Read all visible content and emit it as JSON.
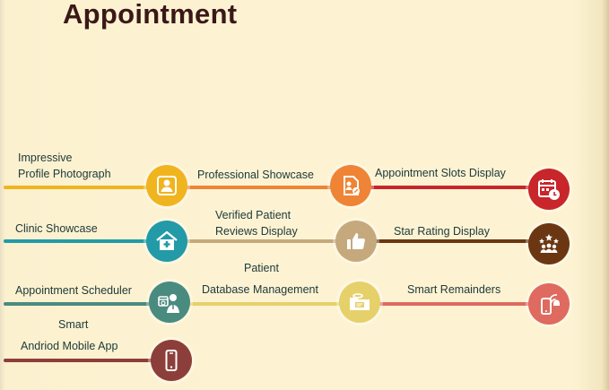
{
  "page": {
    "title": "Appointment"
  },
  "features": [
    {
      "id": "profile",
      "label_lines": [
        "Impressive",
        "Profile Photograph"
      ],
      "icon": "profile-photo-icon",
      "color": "#f0b41e"
    },
    {
      "id": "showcase",
      "label_lines": [
        "Professional Showcase"
      ],
      "icon": "document-badge-icon",
      "color": "#ef8436"
    },
    {
      "id": "slots",
      "label_lines": [
        "Appointment Slots Display"
      ],
      "icon": "calendar-clock-icon",
      "color": "#c8262b"
    },
    {
      "id": "clinic",
      "label_lines": [
        "Clinic Showcase"
      ],
      "icon": "clinic-cross-icon",
      "color": "#239aa7"
    },
    {
      "id": "reviews",
      "label_lines": [
        "Verified Patient",
        "Reviews Display"
      ],
      "icon": "thumbs-up-icon",
      "color": "#c5a97c"
    },
    {
      "id": "rating",
      "label_lines": [
        "Star Rating Display"
      ],
      "icon": "star-rating-users-icon",
      "color": "#6b3712"
    },
    {
      "id": "scheduler",
      "label_lines": [
        "Appointment Scheduler"
      ],
      "icon": "doctor-scheduler-icon",
      "color": "#4a8b80"
    },
    {
      "id": "database",
      "label_lines": [
        "Patient",
        "Database Management"
      ],
      "icon": "database-folder-icon",
      "color": "#e6d06a"
    },
    {
      "id": "reminders",
      "label_lines": [
        "Smart Remainders"
      ],
      "icon": "phone-alarm-icon",
      "color": "#df6a60"
    },
    {
      "id": "mobile",
      "label_lines": [
        "Smart",
        "Andriod Mobile App"
      ],
      "icon": "smartphone-icon",
      "color": "#8c3f3a"
    }
  ]
}
